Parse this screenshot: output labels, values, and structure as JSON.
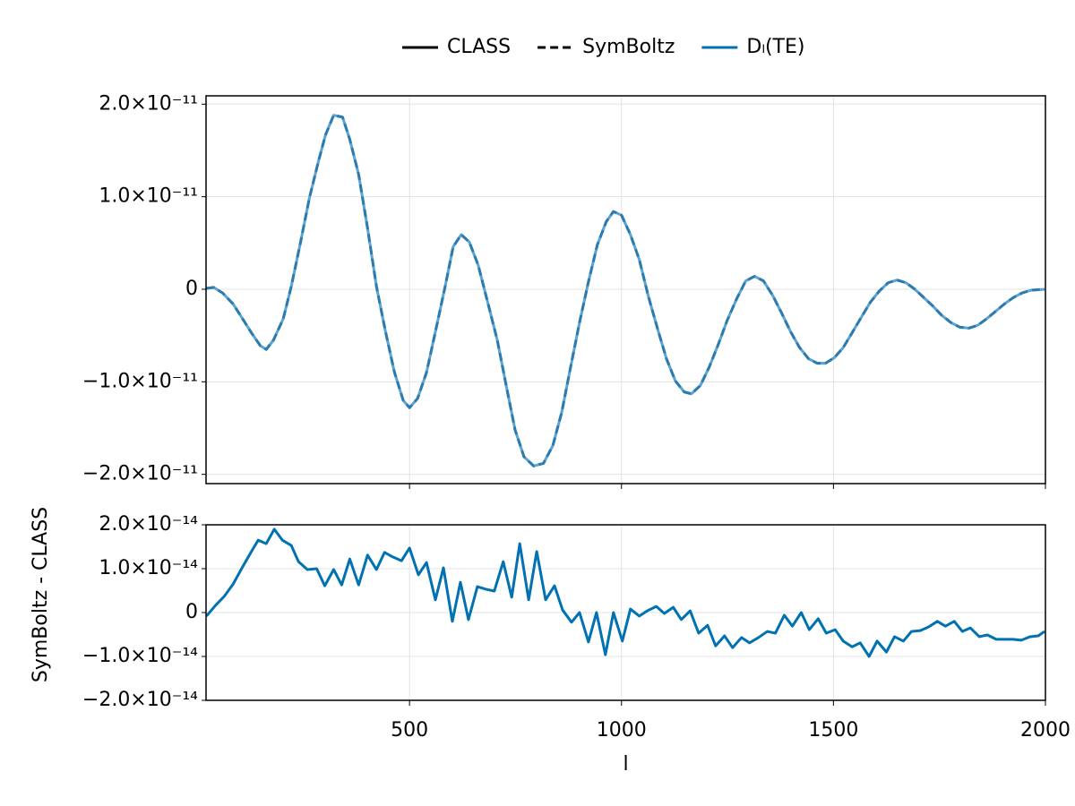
{
  "chart_data": [
    {
      "type": "line",
      "legend_color": "#000000",
      "quantity": {
        "name": "Dₗ(TE)",
        "color": "#0072b2"
      },
      "x": [
        21,
        38,
        59,
        84,
        105,
        127,
        148,
        162,
        179,
        202,
        221,
        243,
        264,
        285,
        302,
        321,
        342,
        359,
        380,
        401,
        422,
        443,
        464,
        485,
        500,
        519,
        540,
        561,
        584,
        603,
        622,
        641,
        662,
        686,
        707,
        728,
        749,
        770,
        793,
        816,
        838,
        859,
        880,
        901,
        922,
        943,
        964,
        981,
        1000,
        1021,
        1042,
        1063,
        1084,
        1106,
        1127,
        1148,
        1165,
        1186,
        1207,
        1228,
        1249,
        1272,
        1293,
        1314,
        1335,
        1357,
        1378,
        1399,
        1420,
        1441,
        1462,
        1481,
        1502,
        1523,
        1544,
        1566,
        1587,
        1608,
        1629,
        1650,
        1671,
        1692,
        1713,
        1734,
        1755,
        1777,
        1798,
        1819,
        1840,
        1861,
        1882,
        1903,
        1924,
        1945,
        1966,
        1998
      ],
      "series": [
        {
          "name": "CLASS",
          "linestyle": "solid",
          "color": "#5ba3d3",
          "values": [
            1e-13,
            2e-13,
            -4e-13,
            -1.6e-12,
            -3.1e-12,
            -4.7e-12,
            -6.1e-12,
            -6.5e-12,
            -5.5e-12,
            -3.2e-12,
            3e-13,
            5.1e-12,
            9.9e-12,
            1.38e-11,
            1.67e-11,
            1.88e-11,
            1.86e-11,
            1.62e-11,
            1.24e-11,
            6.6e-12,
            3e-13,
            -4.5e-12,
            -8.9e-12,
            -1.2e-11,
            -1.28e-11,
            -1.18e-11,
            -9e-12,
            -4.6e-12,
            3e-13,
            4.6e-12,
            5.9e-12,
            5.1e-12,
            2.6e-12,
            -1.7e-12,
            -5.5e-12,
            -1.04e-11,
            -1.52e-11,
            -1.81e-11,
            -1.91e-11,
            -1.88e-11,
            -1.69e-11,
            -1.33e-11,
            -8.4e-12,
            -3.6e-12,
            8e-13,
            4.8e-12,
            7.3e-12,
            8.4e-12,
            8e-12,
            5.9e-12,
            3.2e-12,
            -7e-13,
            -4.1e-12,
            -7.5e-12,
            -9.9e-12,
            -1.11e-11,
            -1.13e-11,
            -1.04e-11,
            -8.4e-12,
            -6e-12,
            -3.4e-12,
            -1e-12,
            9e-13,
            1.4e-12,
            9e-13,
            -7e-13,
            -2.6e-12,
            -4.6e-12,
            -6.3e-12,
            -7.5e-12,
            -8e-12,
            -8e-12,
            -7.4e-12,
            -6.3e-12,
            -4.7e-12,
            -3e-12,
            -1.4e-12,
            -2e-13,
            7e-13,
            1e-12,
            7e-13,
            0.0,
            -9e-13,
            -1.8e-12,
            -2.8e-12,
            -3.6e-12,
            -4.1e-12,
            -4.2e-12,
            -3.9e-12,
            -3.2e-12,
            -2.4e-12,
            -1.6e-12,
            -9e-13,
            -4e-13,
            -1e-13,
            0.0
          ]
        },
        {
          "name": "SymBoltz",
          "linestyle": "dashed",
          "color": "#2d7aad",
          "values": [
            1e-13,
            2e-13,
            -4e-13,
            -1.6e-12,
            -3.1e-12,
            -4.7e-12,
            -6.1e-12,
            -6.5e-12,
            -5.5e-12,
            -3.2e-12,
            3e-13,
            5.1e-12,
            9.9e-12,
            1.38e-11,
            1.67e-11,
            1.88e-11,
            1.86e-11,
            1.62e-11,
            1.24e-11,
            6.6e-12,
            3e-13,
            -4.5e-12,
            -8.9e-12,
            -1.2e-11,
            -1.28e-11,
            -1.18e-11,
            -9e-12,
            -4.6e-12,
            3e-13,
            4.6e-12,
            5.9e-12,
            5.1e-12,
            2.6e-12,
            -1.7e-12,
            -5.5e-12,
            -1.04e-11,
            -1.52e-11,
            -1.81e-11,
            -1.91e-11,
            -1.88e-11,
            -1.69e-11,
            -1.33e-11,
            -8.4e-12,
            -3.6e-12,
            8e-13,
            4.8e-12,
            7.3e-12,
            8.4e-12,
            8e-12,
            5.9e-12,
            3.2e-12,
            -7e-13,
            -4.1e-12,
            -7.5e-12,
            -9.9e-12,
            -1.11e-11,
            -1.13e-11,
            -1.04e-11,
            -8.4e-12,
            -6e-12,
            -3.4e-12,
            -1e-12,
            9e-13,
            1.4e-12,
            9e-13,
            -7e-13,
            -2.6e-12,
            -4.6e-12,
            -6.3e-12,
            -7.5e-12,
            -8e-12,
            -8e-12,
            -7.4e-12,
            -6.3e-12,
            -4.7e-12,
            -3e-12,
            -1.4e-12,
            -2e-13,
            7e-13,
            1e-12,
            7e-13,
            0.0,
            -9e-13,
            -1.8e-12,
            -2.8e-12,
            -3.6e-12,
            -4.1e-12,
            -4.2e-12,
            -3.9e-12,
            -3.2e-12,
            -2.4e-12,
            -1.6e-12,
            -9e-13,
            -4e-13,
            -1e-13,
            0.0
          ]
        }
      ],
      "xlim": [
        20,
        2000
      ],
      "ylim": [
        -2.1e-11,
        2.09e-11
      ],
      "yticks": [
        {
          "value": -2e-11,
          "label": "−2.0×10⁻¹¹"
        },
        {
          "value": -1e-11,
          "label": "−1.0×10⁻¹¹"
        },
        0,
        {
          "value": 1e-11,
          "label": "1.0×10⁻¹¹"
        },
        {
          "value": 2e-11,
          "label": "2.0×10⁻¹¹"
        }
      ],
      "grid": true
    },
    {
      "type": "line",
      "x_label": "l",
      "y_label": "SymBoltz - CLASS",
      "x": [
        21,
        42,
        63,
        84,
        105,
        127,
        143,
        162,
        181,
        200,
        221,
        238,
        259,
        281,
        300,
        321,
        340,
        359,
        380,
        401,
        422,
        441,
        460,
        481,
        500,
        521,
        540,
        561,
        580,
        601,
        620,
        639,
        660,
        681,
        700,
        721,
        741,
        760,
        781,
        800,
        821,
        842,
        861,
        882,
        901,
        922,
        941,
        962,
        981,
        1002,
        1021,
        1042,
        1061,
        1082,
        1101,
        1122,
        1141,
        1162,
        1182,
        1203,
        1222,
        1243,
        1262,
        1283,
        1302,
        1323,
        1344,
        1363,
        1384,
        1403,
        1424,
        1443,
        1464,
        1483,
        1504,
        1523,
        1544,
        1563,
        1584,
        1603,
        1625,
        1644,
        1665,
        1684,
        1705,
        1724,
        1745,
        1764,
        1785,
        1804,
        1823,
        1844,
        1863,
        1884,
        1903,
        1924,
        1943,
        1964,
        1983,
        1998
      ],
      "series": [
        {
          "color": "#0072b2",
          "values": [
            -8e-16,
            1.6e-15,
            3.7e-15,
            6.5e-15,
            1.02e-14,
            1.39e-14,
            1.65e-14,
            1.57e-14,
            1.9e-14,
            1.65e-14,
            1.53e-14,
            1.16e-14,
            9.8e-15,
            1e-14,
            6.1e-15,
            9.8e-15,
            6.3e-15,
            1.22e-14,
            6.3e-15,
            1.31e-14,
            9.8e-15,
            1.37e-14,
            1.27e-14,
            1.18e-14,
            1.47e-14,
            8.6e-15,
            1.14e-14,
            2.9e-15,
            1.02e-14,
            -2e-15,
            6.9e-15,
            -1.6e-15,
            5.9e-15,
            5.3e-15,
            4.9e-15,
            1.16e-14,
            3.5e-15,
            1.57e-14,
            2.9e-15,
            1.39e-14,
            2.9e-15,
            6.1e-15,
            6e-16,
            -2.2e-15,
            0.0,
            -6.7e-15,
            0.0,
            -9.6e-15,
            0.0,
            -6.5e-15,
            8e-16,
            -8e-16,
            4e-16,
            1.4e-15,
            -2e-16,
            1.2e-15,
            -1.6e-15,
            4e-16,
            -4.7e-15,
            -2.9e-15,
            -7.6e-15,
            -5.3e-15,
            -8e-15,
            -5.7e-15,
            -6.9e-15,
            -5.7e-15,
            -4.3e-15,
            -4.7e-15,
            -6e-16,
            -3.1e-15,
            0.0,
            -3.9e-15,
            -1.4e-15,
            -4.7e-15,
            -3.9e-15,
            -6.5e-15,
            -7.8e-15,
            -6.9e-15,
            -1e-14,
            -6.5e-15,
            -9e-15,
            -5.5e-15,
            -6.5e-15,
            -4.3e-15,
            -4.1e-15,
            -3.3e-15,
            -2e-15,
            -3.1e-15,
            -2e-15,
            -4.3e-15,
            -3.5e-15,
            -5.5e-15,
            -5.1e-15,
            -6.1e-15,
            -6.1e-15,
            -6.1e-15,
            -6.3e-15,
            -5.5e-15,
            -5.3e-15,
            -4.3e-15
          ]
        }
      ],
      "xlim": [
        20,
        2000
      ],
      "xticks": [
        500,
        1000,
        1500,
        2000
      ],
      "ylim": [
        -2e-14,
        2e-14
      ],
      "yticks": [
        {
          "value": -2e-14,
          "label": "−2.0×10⁻¹⁴"
        },
        {
          "value": -1e-14,
          "label": "−1.0×10⁻¹⁴"
        },
        0,
        {
          "value": 1e-14,
          "label": "1.0×10⁻¹⁴"
        },
        {
          "value": 2e-14,
          "label": "2.0×10⁻¹⁴"
        }
      ],
      "grid": true
    }
  ]
}
